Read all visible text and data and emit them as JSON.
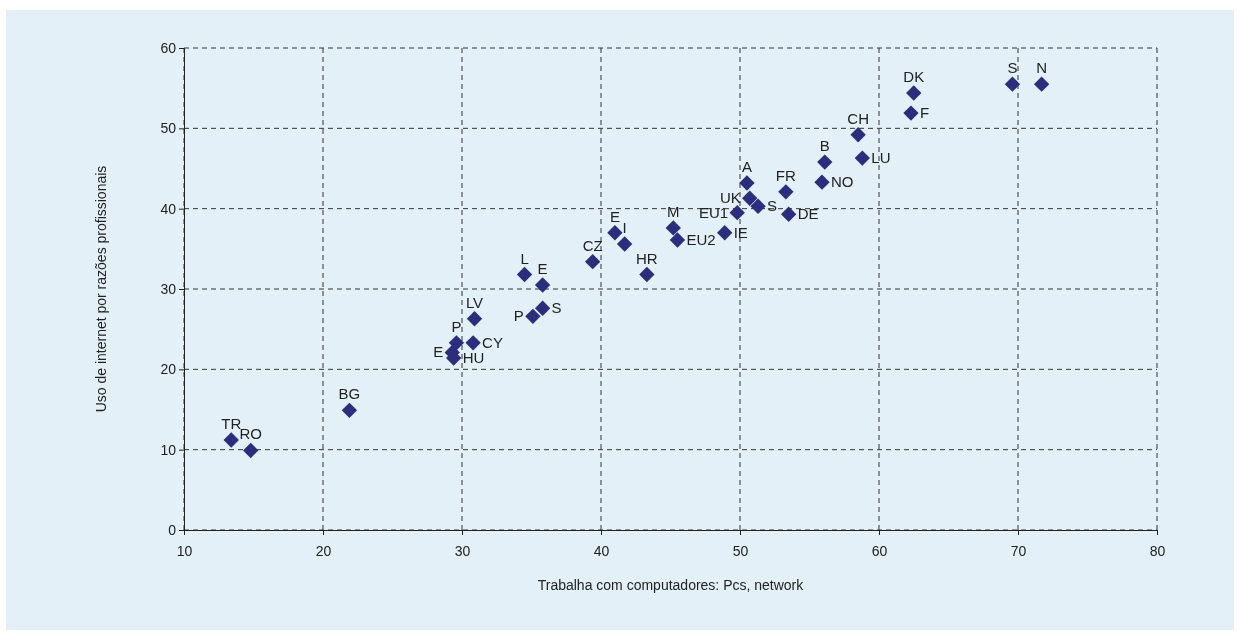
{
  "chart_data": {
    "type": "scatter",
    "xlabel": "Trabalha com computadores: Pcs, network",
    "ylabel": "Uso de internet por razões profissionais",
    "xlim": [
      10,
      80
    ],
    "xticks": [
      10,
      20,
      30,
      40,
      50,
      60,
      70,
      80
    ],
    "ylim": [
      0,
      60
    ],
    "yticks": [
      0,
      10,
      20,
      30,
      40,
      50,
      60
    ],
    "grid": true,
    "marker": "diamond",
    "series": [
      {
        "color": "#2b2d7e",
        "x": [
          13.4,
          14.8,
          21.9,
          29.4,
          29.3,
          29.6,
          30.8,
          30.9,
          34.5,
          35.8,
          35.8,
          35.1,
          39.4,
          41.0,
          41.7,
          43.3,
          45.2,
          45.5,
          48.9,
          49.8,
          50.5,
          50.7,
          51.3,
          53.3,
          53.5,
          55.9,
          56.1,
          58.5,
          58.8,
          62.3,
          62.5,
          69.6,
          71.7
        ],
        "values": [
          11.2,
          9.9,
          14.9,
          21.4,
          22.1,
          23.3,
          23.3,
          26.3,
          31.8,
          30.5,
          27.6,
          26.6,
          33.4,
          37.0,
          35.6,
          31.8,
          37.6,
          36.1,
          37.0,
          39.5,
          43.2,
          41.3,
          40.3,
          42.1,
          39.3,
          43.3,
          45.8,
          49.2,
          46.3,
          51.9,
          54.4,
          55.5,
          55.5
        ],
        "value_labels": [
          "TR",
          "RO",
          "BG",
          "HU",
          "E",
          "P",
          "CY",
          "LV",
          "L",
          "E",
          "S",
          "P",
          "CZ",
          "E",
          "I",
          "HR",
          "M",
          "EU2",
          "IE",
          "EU1",
          "A",
          "UK",
          "S",
          "FR",
          "DE",
          "NO",
          "B",
          "CH",
          "LU",
          "F",
          "DK",
          "S",
          "N"
        ]
      }
    ]
  }
}
